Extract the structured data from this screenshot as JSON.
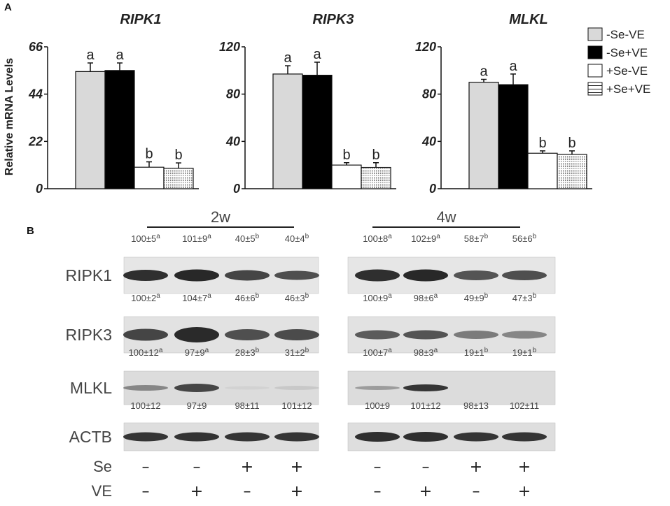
{
  "panel_a_label": "A",
  "panel_b_label": "B",
  "y_axis_label": "Relative mRNA Levels",
  "colors": {
    "-Se-VE": "#d9d9d9",
    "-Se+VE": "#000000",
    "+Se-VE": "#ffffff",
    "+Se+VE": "#ffffff"
  },
  "legend": [
    {
      "label": "-Se-VE",
      "fill": "light-gray"
    },
    {
      "label": "-Se+VE",
      "fill": "black"
    },
    {
      "label": "+Se-VE",
      "fill": "white"
    },
    {
      "label": "+Se+VE",
      "fill": "horizontal-lines"
    }
  ],
  "chart_data": [
    {
      "type": "bar",
      "title": "RIPK1",
      "ylabel": "Relative mRNA Levels",
      "ylim": [
        0,
        66
      ],
      "yticks": [
        "0",
        "22",
        "44",
        "66"
      ],
      "categories": [
        "-Se-VE",
        "-Se+VE",
        "+Se-VE",
        "+Se+VE"
      ],
      "values": [
        54.5,
        55,
        10,
        9.5
      ],
      "errors": [
        4,
        3.5,
        2.5,
        2.5
      ],
      "labels": [
        "a",
        "a",
        "b",
        "b"
      ]
    },
    {
      "type": "bar",
      "title": "RIPK3",
      "ylim": [
        0,
        120
      ],
      "yticks": [
        "0",
        "40",
        "80",
        "120"
      ],
      "categories": [
        "-Se-VE",
        "-Se+VE",
        "+Se-VE",
        "+Se+VE"
      ],
      "values": [
        97,
        96,
        20,
        18
      ],
      "errors": [
        7,
        11,
        2,
        4
      ],
      "labels": [
        "a",
        "a",
        "b",
        "b"
      ]
    },
    {
      "type": "bar",
      "title": "MLKL",
      "ylim": [
        0,
        120
      ],
      "yticks": [
        "0",
        "40",
        "80",
        "120"
      ],
      "categories": [
        "-Se-VE",
        "-Se+VE",
        "+Se-VE",
        "+Se+VE"
      ],
      "values": [
        90,
        88,
        30,
        29
      ],
      "errors": [
        2.5,
        9,
        2,
        3
      ],
      "labels": [
        "a",
        "a",
        "b",
        "b"
      ]
    }
  ],
  "blot": {
    "time_points": [
      "2w",
      "4w"
    ],
    "rows": [
      {
        "protein": "RIPK1",
        "values": [
          [
            "100±5",
            "a"
          ],
          [
            "101±9",
            "a"
          ],
          [
            "40±5",
            "b"
          ],
          [
            "40±4",
            "b"
          ],
          [
            "100±8",
            "a"
          ],
          [
            "102±9",
            "a"
          ],
          [
            "58±7",
            "b"
          ],
          [
            "56±6",
            "b"
          ]
        ]
      },
      {
        "protein": "RIPK3",
        "values": [
          [
            "100±2",
            "a"
          ],
          [
            "104±7",
            "a"
          ],
          [
            "46±6",
            "b"
          ],
          [
            "46±3",
            "b"
          ],
          [
            "100±9",
            "a"
          ],
          [
            "98±6",
            "a"
          ],
          [
            "49±9",
            "b"
          ],
          [
            "47±3",
            "b"
          ]
        ]
      },
      {
        "protein": "MLKL",
        "values": [
          [
            "100±12",
            "a"
          ],
          [
            "97±9",
            "a"
          ],
          [
            "28±3",
            "b"
          ],
          [
            "31±2",
            "b"
          ],
          [
            "100±7",
            "a"
          ],
          [
            "98±3",
            "a"
          ],
          [
            "19±1",
            "b"
          ],
          [
            "19±1",
            "b"
          ]
        ]
      },
      {
        "protein": "ACTB",
        "values": [
          [
            "100±12",
            ""
          ],
          [
            "97±9",
            ""
          ],
          [
            "98±11",
            ""
          ],
          [
            "101±12",
            ""
          ],
          [
            "100±9",
            ""
          ],
          [
            "101±12",
            ""
          ],
          [
            "98±13",
            ""
          ],
          [
            "102±11",
            ""
          ]
        ]
      }
    ],
    "conditions": [
      {
        "name": "Se",
        "signs": [
          "–",
          "–",
          "+",
          "+",
          "–",
          "–",
          "+",
          "+"
        ]
      },
      {
        "name": "VE",
        "signs": [
          "–",
          "+",
          "–",
          "+",
          "–",
          "+",
          "–",
          "+"
        ]
      }
    ]
  }
}
